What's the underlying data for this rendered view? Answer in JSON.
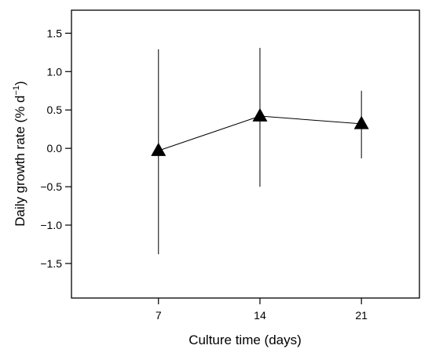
{
  "chart_data": {
    "type": "line",
    "xlabel": "Culture time (days)",
    "ylabel": {
      "main": "Daily growth rate (% d",
      "sup": "−1",
      "close": ")"
    },
    "x": [
      7,
      14,
      21
    ],
    "x_ticks": [
      "7",
      "14",
      "21"
    ],
    "xlim": [
      1,
      25
    ],
    "ylim": [
      -1.95,
      1.8
    ],
    "y_ticks": [
      1.5,
      1.0,
      0.5,
      0.0,
      -0.5,
      -1.0,
      -1.5
    ],
    "y_tick_labels": [
      "1.5",
      "1.0",
      "0.5",
      "0.0",
      "−0.5",
      "−1.0",
      "−1.5"
    ],
    "series": [
      {
        "values": [
          -0.03,
          0.42,
          0.32
        ],
        "error_upper": [
          1.29,
          1.31,
          0.75
        ],
        "error_lower": [
          -1.38,
          -0.5,
          -0.13
        ],
        "marker": "triangle",
        "color": "#000000"
      }
    ],
    "grid": false,
    "legend": "none"
  }
}
